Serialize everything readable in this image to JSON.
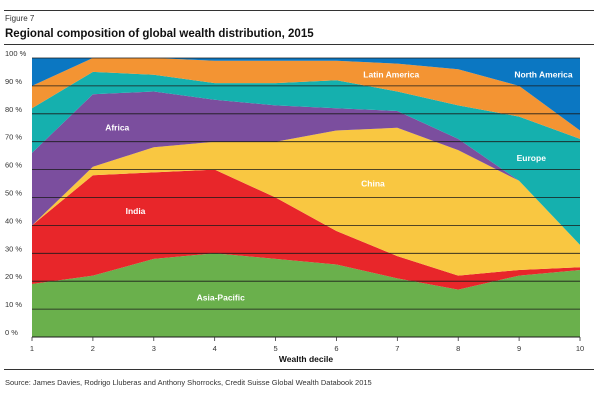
{
  "figure_label": "Figure 7",
  "title": "Regional composition of global wealth distribution, 2015",
  "source": "Source: James Davies, Rodrigo Lluberas and Anthony Shorrocks, Credit Suisse Global Wealth Databook 2015",
  "chart_data": {
    "type": "area",
    "stacked": true,
    "xlabel": "Wealth decile",
    "x": [
      1,
      2,
      3,
      4,
      5,
      6,
      7,
      8,
      9,
      10
    ],
    "ylim": [
      0,
      100
    ],
    "yticks": [
      "0 %",
      "10 %",
      "20 %",
      "30 %",
      "40 %",
      "50 %",
      "60 %",
      "70 %",
      "80 %",
      "90 %",
      "100 %"
    ],
    "grid": true,
    "legend": "labels placed inside areas",
    "series": [
      {
        "name": "Asia-Pacific",
        "color": "#6ab04c",
        "label_x": 4.1,
        "label_y": 13,
        "values": [
          19,
          22,
          28,
          30,
          28,
          26,
          21,
          17,
          22,
          24
        ]
      },
      {
        "name": "India",
        "color": "#e8262a",
        "label_x": 2.7,
        "label_y": 44,
        "values": [
          21,
          36,
          31,
          30,
          22,
          12,
          8,
          5,
          2,
          1
        ]
      },
      {
        "name": "China",
        "color": "#f9c741",
        "label_x": 6.6,
        "label_y": 54,
        "values": [
          0,
          3,
          9,
          10,
          20,
          36,
          46,
          45,
          32,
          8
        ]
      },
      {
        "name": "Africa",
        "color": "#7b4e9e",
        "label_x": 2.4,
        "label_y": 74,
        "values": [
          26,
          26,
          20,
          15,
          13,
          8,
          6,
          4,
          0,
          0
        ]
      },
      {
        "name": "Europe",
        "color": "#15b0ae",
        "label_x": 9.2,
        "label_y": 63,
        "values": [
          16,
          8,
          6,
          6,
          8,
          10,
          7,
          12,
          23,
          38
        ]
      },
      {
        "name": "Latin America",
        "color": "#f39433",
        "label_x": 6.9,
        "label_y": 93,
        "values": [
          8,
          5,
          6,
          8,
          8,
          7,
          10,
          13,
          11,
          3
        ]
      },
      {
        "name": "North America",
        "color": "#0b77c2",
        "label_x": 9.4,
        "label_y": 93,
        "values": [
          10,
          0,
          0,
          1,
          1,
          1,
          2,
          4,
          10,
          26
        ]
      }
    ]
  }
}
